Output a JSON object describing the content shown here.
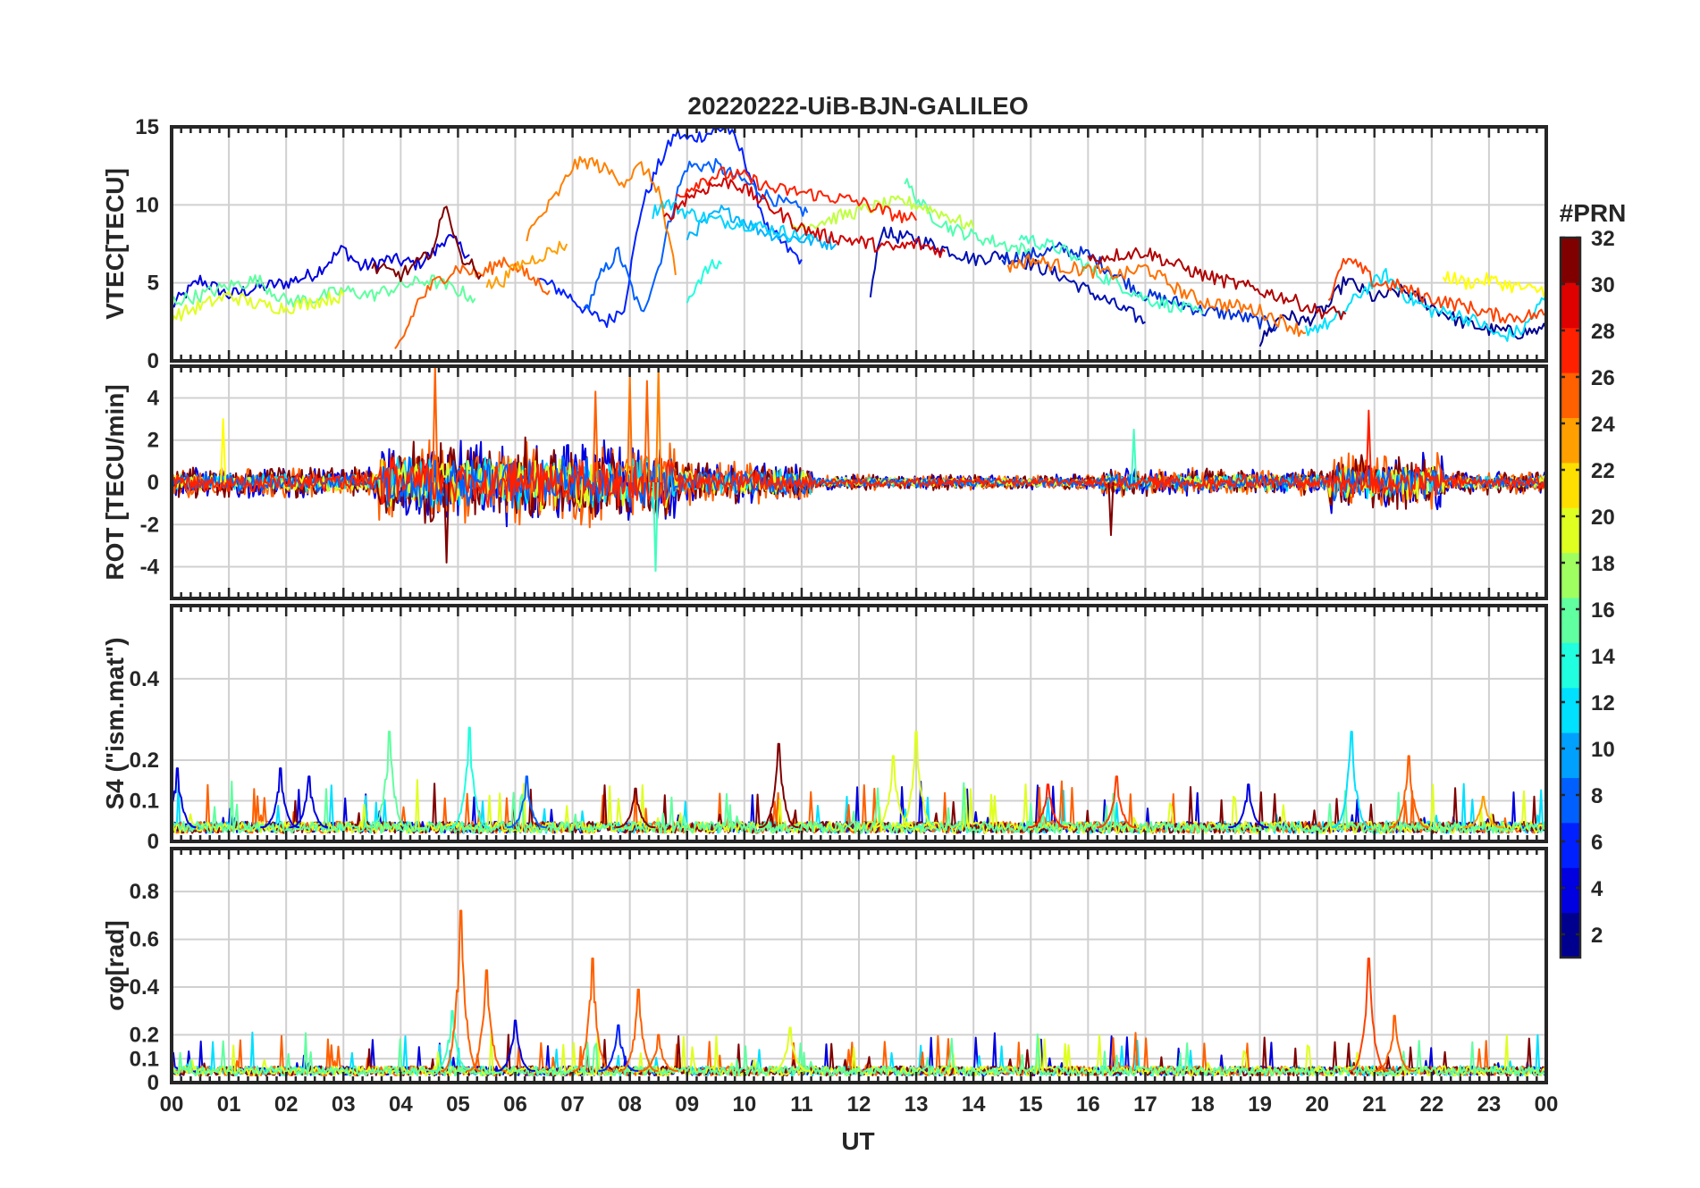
{
  "chart_data": {
    "title": "20220222-UiB-BJN-GALILEO",
    "xlabel": "UT",
    "x_ticks": [
      "00",
      "01",
      "02",
      "03",
      "04",
      "05",
      "06",
      "07",
      "08",
      "09",
      "10",
      "11",
      "12",
      "13",
      "14",
      "15",
      "16",
      "17",
      "18",
      "19",
      "20",
      "21",
      "22",
      "23",
      "00"
    ],
    "x_range_hours": [
      0,
      24
    ],
    "grid": true,
    "colorbar": {
      "title": "#PRN",
      "range": [
        1,
        32
      ],
      "ticks": [
        "2",
        "4",
        "6",
        "8",
        "10",
        "12",
        "14",
        "16",
        "18",
        "20",
        "22",
        "24",
        "26",
        "28",
        "30",
        "32"
      ],
      "colormap": "jet",
      "placement": "right"
    },
    "panels": [
      {
        "type": "line",
        "ylabel": "VTEC[TECU]",
        "ylim": [
          0,
          15
        ],
        "yticks": [
          "0",
          "5",
          "10",
          "15"
        ],
        "series": [
          {
            "prn": 3,
            "color": "#0000e0",
            "x": [
              0,
              0.5,
              1,
              1.5,
              2,
              2.5,
              3,
              3.3,
              3.8,
              4.3,
              4.6,
              4.8,
              5.2
            ],
            "y": [
              3.5,
              5.2,
              4.2,
              4.7,
              5.0,
              5.6,
              7.2,
              6.0,
              6.5,
              6.2,
              7.0,
              8.0,
              6.8
            ]
          },
          {
            "prn": 5,
            "color": "#0020ff",
            "x": [
              6.4,
              6.8,
              7.0,
              7.3,
              7.6,
              7.9,
              8.2,
              8.5,
              8.8,
              9.0,
              9.3,
              9.7,
              10.0,
              10.4,
              10.8,
              11.0
            ],
            "y": [
              5.2,
              4.5,
              4.0,
              3.0,
              2.5,
              3.5,
              9.8,
              12.5,
              14.6,
              14.2,
              14.5,
              15.0,
              13.0,
              8.5,
              7.0,
              6.5
            ]
          },
          {
            "prn": 7,
            "color": "#0060ff",
            "x": [
              7.2,
              7.5,
              7.8,
              8.0,
              8.2,
              8.5,
              8.8,
              9.0,
              9.5,
              10.0,
              10.3,
              10.6,
              10.9,
              11.1
            ],
            "y": [
              3.0,
              5.5,
              7.0,
              5.0,
              3.0,
              6.0,
              10.5,
              12.5,
              12.5,
              11.5,
              10.8,
              10.2,
              9.8,
              9.5
            ]
          },
          {
            "prn": 2,
            "color": "#0010b0",
            "x": [
              12.2,
              12.4,
              12.6,
              13.0,
              13.5,
              14.0,
              14.5,
              15.0,
              15.5,
              16.0,
              16.5,
              17.0
            ],
            "y": [
              4.2,
              8.5,
              8.0,
              7.8,
              7.2,
              6.5,
              6.8,
              6.2,
              5.5,
              4.5,
              3.5,
              2.5
            ]
          },
          {
            "prn": 4,
            "color": "#0030d8",
            "x": [
              14.5,
              15.0,
              15.5,
              16.0,
              16.5,
              17.0,
              17.5,
              18.0,
              18.5,
              19.0,
              19.3
            ],
            "y": [
              6.5,
              6.8,
              7.2,
              6.8,
              5.5,
              4.2,
              3.8,
              3.2,
              3.0,
              2.5,
              2.2
            ]
          },
          {
            "prn": 1,
            "color": "#00008f",
            "x": [
              19.0,
              19.4,
              19.8,
              20.2,
              20.5,
              21.0,
              21.5,
              22.0,
              22.5,
              23.0,
              23.5,
              24.0
            ],
            "y": [
              1.2,
              3.0,
              2.5,
              3.5,
              5.2,
              4.0,
              4.5,
              3.5,
              2.5,
              2.0,
              1.8,
              2.0
            ]
          },
          {
            "prn": 11,
            "color": "#00b4ff",
            "x": [
              9.0,
              9.3,
              9.6,
              9.9,
              10.2,
              10.6,
              11.0,
              11.4,
              11.6
            ],
            "y": [
              8.0,
              8.8,
              9.6,
              9.2,
              8.5,
              8.0,
              7.8,
              7.6,
              7.5
            ]
          },
          {
            "prn": 12,
            "color": "#00d4ff",
            "x": [
              8.4,
              8.6,
              9.0,
              9.5,
              10.0,
              10.4,
              10.8,
              11.2
            ],
            "y": [
              9.5,
              10.2,
              9.5,
              9.0,
              8.8,
              8.5,
              8.2,
              7.8
            ]
          },
          {
            "prn": 13,
            "color": "#20ffdf",
            "x": [
              9.0,
              9.2,
              9.4,
              9.6
            ],
            "y": [
              3.8,
              5.2,
              6.0,
              6.2
            ]
          },
          {
            "prn": 14,
            "color": "#40ffbf",
            "x": [
              14.8,
              15.2,
              15.5,
              15.8,
              16.2,
              16.6,
              17.0,
              17.5,
              18.0
            ],
            "y": [
              8.0,
              7.5,
              7.2,
              6.5,
              5.5,
              4.8,
              4.0,
              3.5,
              3.0
            ]
          },
          {
            "prn": 12,
            "color": "#00e0ff",
            "x": [
              19.8,
              20.3,
              20.8,
              21.2,
              21.6,
              22.0,
              22.4,
              22.8,
              23.2,
              23.6,
              24.0
            ],
            "y": [
              2.0,
              2.5,
              4.5,
              5.5,
              4.0,
              3.2,
              3.0,
              2.5,
              1.5,
              2.0,
              4.2
            ]
          },
          {
            "prn": 16,
            "color": "#60ff9f",
            "x": [
              0,
              0.5,
              1.0,
              1.5,
              2.0,
              2.5,
              3.0,
              3.5,
              4.0,
              4.5,
              5.0,
              5.3
            ],
            "y": [
              3.8,
              4.2,
              4.8,
              5.2,
              3.8,
              4.0,
              4.5,
              4.2,
              4.8,
              5.2,
              4.5,
              4.0
            ]
          },
          {
            "prn": 15,
            "color": "#50ffaf",
            "x": [
              12.8,
              13.2,
              13.6,
              14.0,
              14.5,
              15.0
            ],
            "y": [
              11.5,
              9.5,
              8.5,
              8.0,
              7.5,
              7.0
            ]
          },
          {
            "prn": 20,
            "color": "#dfff20",
            "x": [
              0,
              0.5,
              1.0,
              1.5,
              2.0,
              2.5,
              3.0
            ],
            "y": [
              2.8,
              3.5,
              4.2,
              3.6,
              3.4,
              3.8,
              4.2
            ]
          },
          {
            "prn": 19,
            "color": "#c0ff40",
            "x": [
              10.8,
              11.2,
              11.6,
              12.0,
              12.4,
              12.8,
              13.2,
              13.6,
              14.0
            ],
            "y": [
              8.5,
              8.8,
              9.2,
              9.6,
              10.0,
              10.2,
              9.8,
              9.2,
              8.5
            ]
          },
          {
            "prn": 21,
            "color": "#ffff00",
            "x": [
              22.2,
              22.6,
              23.0,
              23.4,
              23.8,
              24.0
            ],
            "y": [
              5.5,
              5.0,
              5.2,
              4.8,
              4.5,
              4.6
            ]
          },
          {
            "prn": 24,
            "color": "#ff8000",
            "x": [
              6.2,
              6.5,
              6.8,
              7.0,
              7.3,
              7.6,
              7.9,
              8.2,
              8.5,
              8.8
            ],
            "y": [
              8.0,
              9.5,
              11.0,
              12.5,
              12.8,
              12.2,
              11.5,
              12.5,
              11.0,
              5.5
            ]
          },
          {
            "prn": 25,
            "color": "#ff6000",
            "x": [
              3.9,
              4.1,
              4.3,
              4.6,
              5.0,
              5.4,
              5.8,
              6.2,
              6.6
            ],
            "y": [
              0.5,
              2.0,
              3.8,
              5.0,
              6.0,
              5.5,
              6.5,
              5.5,
              4.5
            ]
          },
          {
            "prn": 23,
            "color": "#ff9f00",
            "x": [
              5.5,
              5.8,
              6.0,
              6.3,
              6.6,
              6.9
            ],
            "y": [
              4.8,
              5.2,
              6.0,
              6.5,
              7.0,
              7.5
            ]
          },
          {
            "prn": 24,
            "color": "#ff7000",
            "x": [
              14.6,
              15.0,
              15.6,
              16.0,
              16.6,
              17.0,
              17.6,
              18.0,
              18.6,
              19.0,
              19.4,
              19.8
            ],
            "y": [
              6.0,
              6.5,
              6.0,
              5.8,
              5.5,
              6.0,
              4.5,
              3.8,
              3.5,
              3.2,
              2.5,
              1.8
            ]
          },
          {
            "prn": 26,
            "color": "#ff4000",
            "x": [
              20.2,
              20.5,
              20.8,
              21.0,
              21.4,
              21.8,
              22.2,
              22.6,
              23.0,
              23.4,
              24.0
            ],
            "y": [
              4.0,
              6.5,
              5.8,
              5.0,
              4.8,
              4.2,
              3.8,
              3.5,
              3.0,
              2.8,
              3.0
            ]
          },
          {
            "prn": 28,
            "color": "#ff2000",
            "x": [
              8.8,
              9.2,
              9.6,
              10.0,
              10.5,
              11.0,
              11.5,
              12.0,
              12.5,
              13.0
            ],
            "y": [
              10.5,
              11.5,
              12.0,
              11.8,
              11.0,
              10.8,
              10.5,
              10.2,
              9.5,
              9.0
            ]
          },
          {
            "prn": 30,
            "color": "#d00000",
            "x": [
              8.6,
              9.0,
              9.4,
              9.8,
              10.2,
              10.6,
              11.0,
              11.4,
              11.8,
              12.2,
              12.6,
              13.0,
              13.5
            ],
            "y": [
              9.0,
              10.5,
              11.2,
              11.5,
              10.5,
              9.5,
              8.5,
              8.0,
              7.8,
              7.5,
              7.2,
              7.5,
              7.0
            ]
          },
          {
            "prn": 31,
            "color": "#b00000",
            "x": [
              16.0,
              16.5,
              17.0,
              17.5,
              18.0,
              18.5,
              19.0,
              19.5,
              20.0,
              20.5
            ],
            "y": [
              6.5,
              6.8,
              7.0,
              6.2,
              5.5,
              5.0,
              4.5,
              4.0,
              3.2,
              3.0
            ]
          },
          {
            "prn": 32,
            "color": "#800000",
            "x": [
              3.5,
              4.0,
              4.4,
              4.6,
              4.8,
              5.0,
              5.4
            ],
            "y": [
              6.0,
              5.5,
              6.5,
              7.5,
              10.2,
              7.0,
              5.5
            ]
          }
        ]
      },
      {
        "type": "line",
        "ylabel": "ROT [TECU/min]",
        "ylim": [
          -5.5,
          5.5
        ],
        "yticks": [
          "-4",
          "-2",
          "0",
          "2",
          "4"
        ],
        "noise": [
          {
            "from": 0,
            "to": 3.6,
            "amp": 0.8
          },
          {
            "from": 3.6,
            "to": 8.8,
            "amp": 2.2
          },
          {
            "from": 8.8,
            "to": 11.2,
            "amp": 1.1
          },
          {
            "from": 11.2,
            "to": 16.2,
            "amp": 0.4
          },
          {
            "from": 16.2,
            "to": 20.2,
            "amp": 0.7
          },
          {
            "from": 20.2,
            "to": 22.2,
            "amp": 1.5
          },
          {
            "from": 22.2,
            "to": 24,
            "amp": 0.6
          }
        ],
        "spikes": [
          {
            "x": 0.9,
            "y": 3.0,
            "color": "#ffff00"
          },
          {
            "x": 4.6,
            "y": 5.5,
            "color": "#ff6000"
          },
          {
            "x": 4.8,
            "y": -3.8,
            "color": "#800000"
          },
          {
            "x": 7.4,
            "y": 4.3,
            "color": "#ff6000"
          },
          {
            "x": 8.0,
            "y": 5.0,
            "color": "#ff7000"
          },
          {
            "x": 8.3,
            "y": 4.8,
            "color": "#ff6000"
          },
          {
            "x": 8.45,
            "y": -4.2,
            "color": "#40ffbf"
          },
          {
            "x": 8.5,
            "y": 5.5,
            "color": "#ff8000"
          },
          {
            "x": 16.4,
            "y": -2.5,
            "color": "#800000"
          },
          {
            "x": 16.8,
            "y": 2.5,
            "color": "#40ffbf"
          },
          {
            "x": 20.9,
            "y": 3.4,
            "color": "#ff2000"
          }
        ]
      },
      {
        "type": "line",
        "ylabel": "S4 (\"ism.mat\")",
        "ylim": [
          0,
          0.58
        ],
        "yticks": [
          "0",
          "0.1",
          "0.2",
          "0.4"
        ],
        "peaks": [
          {
            "x": 0.1,
            "y": 0.18,
            "color": "#0000e0"
          },
          {
            "x": 1.9,
            "y": 0.18,
            "color": "#0000e0"
          },
          {
            "x": 2.4,
            "y": 0.16,
            "color": "#0000e0"
          },
          {
            "x": 3.8,
            "y": 0.27,
            "color": "#60ff9f"
          },
          {
            "x": 5.2,
            "y": 0.28,
            "color": "#20ffdf"
          },
          {
            "x": 6.2,
            "y": 0.16,
            "color": "#0060ff"
          },
          {
            "x": 8.1,
            "y": 0.13,
            "color": "#800000"
          },
          {
            "x": 10.6,
            "y": 0.24,
            "color": "#800000"
          },
          {
            "x": 12.6,
            "y": 0.21,
            "color": "#dfff20"
          },
          {
            "x": 13.0,
            "y": 0.27,
            "color": "#dfff20"
          },
          {
            "x": 15.3,
            "y": 0.14,
            "color": "#ff2000"
          },
          {
            "x": 16.5,
            "y": 0.16,
            "color": "#ff4000"
          },
          {
            "x": 18.8,
            "y": 0.14,
            "color": "#0000e0"
          },
          {
            "x": 20.6,
            "y": 0.27,
            "color": "#00e0ff"
          },
          {
            "x": 21.6,
            "y": 0.21,
            "color": "#ff6000"
          },
          {
            "x": 22.9,
            "y": 0.11,
            "color": "#ff9f00"
          }
        ]
      },
      {
        "type": "line",
        "ylabel": "σφ[rad]",
        "ylim": [
          0,
          0.98
        ],
        "yticks": [
          "0",
          "0.1",
          "0.2",
          "0.4",
          "0.6",
          "0.8"
        ],
        "peaks": [
          {
            "x": 4.9,
            "y": 0.3,
            "color": "#40ffbf"
          },
          {
            "x": 5.05,
            "y": 0.72,
            "color": "#ff6000"
          },
          {
            "x": 5.5,
            "y": 0.47,
            "color": "#ff6000"
          },
          {
            "x": 6.0,
            "y": 0.26,
            "color": "#0000e0"
          },
          {
            "x": 7.35,
            "y": 0.52,
            "color": "#ff6000"
          },
          {
            "x": 7.8,
            "y": 0.24,
            "color": "#0020ff"
          },
          {
            "x": 8.15,
            "y": 0.39,
            "color": "#ff6000"
          },
          {
            "x": 8.5,
            "y": 0.2,
            "color": "#ff6000"
          },
          {
            "x": 10.8,
            "y": 0.23,
            "color": "#dfff20"
          },
          {
            "x": 20.9,
            "y": 0.52,
            "color": "#ff4000"
          },
          {
            "x": 21.35,
            "y": 0.28,
            "color": "#ff6000"
          }
        ]
      }
    ]
  }
}
